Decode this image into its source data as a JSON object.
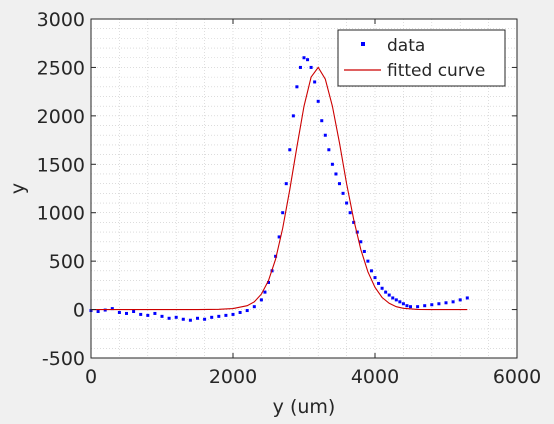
{
  "chart_data": {
    "type": "scatter",
    "title": "",
    "xlabel": "y (um)",
    "ylabel": "y",
    "xlim": [
      0,
      6000
    ],
    "ylim": [
      -500,
      3000
    ],
    "xticks": [
      0,
      2000,
      4000,
      6000
    ],
    "yticks": [
      -500,
      0,
      500,
      1000,
      1500,
      2000,
      2500,
      3000
    ],
    "xtick_labels": [
      "0",
      "2000",
      "4000",
      "6000"
    ],
    "ytick_labels": [
      "-500",
      "0",
      "500",
      "1000",
      "1500",
      "2000",
      "2500",
      "3000"
    ],
    "grid": "on (major and minor, dotted)",
    "legend_position": "top-right",
    "series": [
      {
        "name": "data",
        "kind": "markers",
        "color": "#0000ff",
        "x": [
          0,
          100,
          200,
          300,
          400,
          500,
          600,
          700,
          800,
          900,
          1000,
          1100,
          1200,
          1300,
          1400,
          1500,
          1600,
          1700,
          1800,
          1900,
          2000,
          2100,
          2200,
          2300,
          2400,
          2450,
          2500,
          2550,
          2600,
          2650,
          2700,
          2750,
          2800,
          2850,
          2900,
          2950,
          3000,
          3050,
          3100,
          3150,
          3200,
          3250,
          3300,
          3350,
          3400,
          3450,
          3500,
          3550,
          3600,
          3650,
          3700,
          3750,
          3800,
          3850,
          3900,
          3950,
          4000,
          4050,
          4100,
          4150,
          4200,
          4250,
          4300,
          4350,
          4400,
          4450,
          4500,
          4600,
          4700,
          4800,
          4900,
          5000,
          5100,
          5200,
          5300
        ],
        "y": [
          -10,
          -20,
          -5,
          10,
          -30,
          -40,
          -20,
          -50,
          -60,
          -40,
          -70,
          -90,
          -80,
          -100,
          -110,
          -90,
          -100,
          -80,
          -70,
          -60,
          -50,
          -30,
          -10,
          30,
          100,
          180,
          280,
          400,
          550,
          750,
          1000,
          1300,
          1650,
          2000,
          2300,
          2500,
          2600,
          2580,
          2500,
          2350,
          2150,
          1950,
          1800,
          1650,
          1500,
          1400,
          1300,
          1200,
          1100,
          1000,
          900,
          800,
          700,
          600,
          500,
          400,
          330,
          270,
          220,
          180,
          150,
          120,
          100,
          80,
          60,
          40,
          30,
          30,
          40,
          50,
          60,
          70,
          80,
          100,
          120
        ]
      },
      {
        "name": "fitted curve",
        "kind": "line",
        "color": "#cc0000",
        "x": [
          0,
          500,
          1000,
          1500,
          1800,
          2000,
          2200,
          2300,
          2400,
          2500,
          2600,
          2700,
          2800,
          2900,
          3000,
          3100,
          3200,
          3300,
          3400,
          3500,
          3600,
          3700,
          3800,
          3900,
          4000,
          4100,
          4200,
          4300,
          4400,
          4600,
          4800,
          5000,
          5300
        ],
        "y": [
          0,
          0,
          0,
          0,
          3,
          10,
          40,
          80,
          160,
          300,
          520,
          840,
          1240,
          1680,
          2100,
          2400,
          2500,
          2380,
          2100,
          1720,
          1300,
          930,
          620,
          390,
          230,
          125,
          65,
          30,
          13,
          2,
          0,
          0,
          0
        ]
      }
    ]
  },
  "colors": {
    "background": "#f0f0f0",
    "plot_area": "#ffffff",
    "data_markers": "#0000ff",
    "fitted_curve": "#cc0000",
    "axis": "#262626",
    "grid": "#c8c8c8"
  }
}
